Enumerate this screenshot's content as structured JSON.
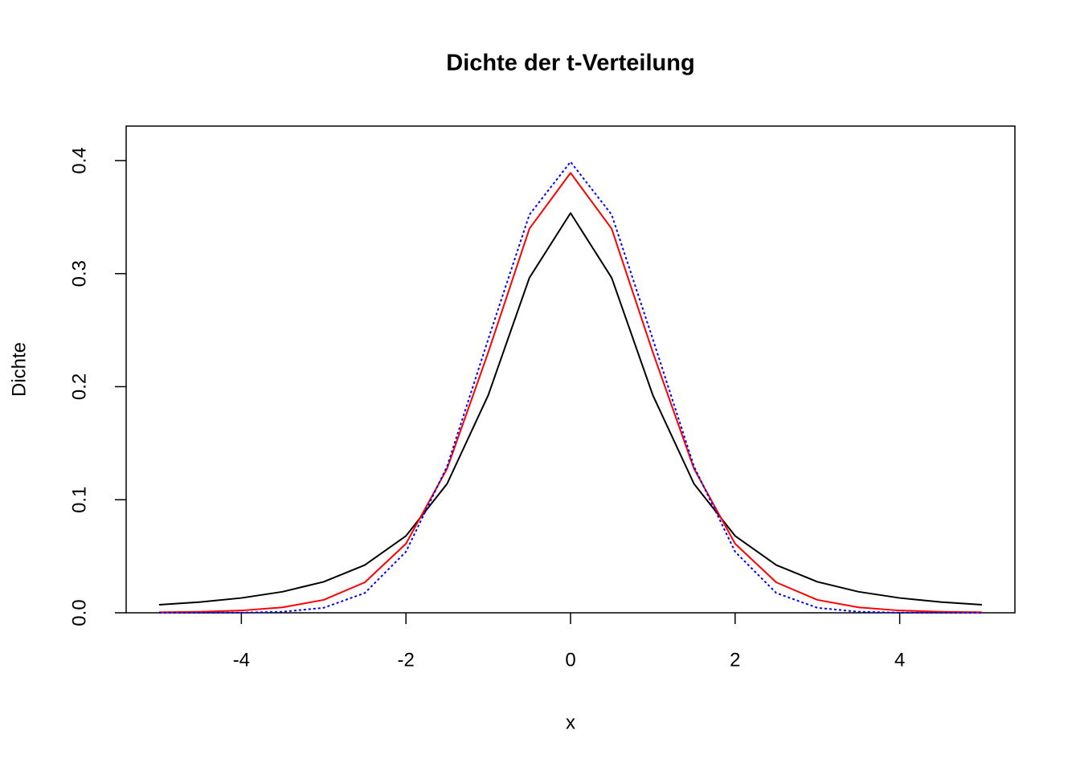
{
  "chart_data": {
    "type": "line",
    "title": "Dichte der t-Verteilung",
    "x_label": "x",
    "y_label": "Dichte",
    "x": [
      -5,
      -4.5,
      -4,
      -3.5,
      -3,
      -2.5,
      -2,
      -1.5,
      -1,
      -0.5,
      0,
      0.5,
      1,
      1.5,
      2,
      2.5,
      3,
      3.5,
      4,
      4.5,
      5
    ],
    "series": [
      {
        "color": "#000000",
        "dash": "none",
        "values": [
          0.0071,
          0.0095,
          0.0131,
          0.0186,
          0.0274,
          0.0422,
          0.068,
          0.1141,
          0.1925,
          0.2963,
          0.3536,
          0.2963,
          0.1925,
          0.1141,
          0.068,
          0.0422,
          0.0274,
          0.0186,
          0.0131,
          0.0095,
          0.0071
        ]
      },
      {
        "color": "#ff0000",
        "dash": "none",
        "values": [
          0.0004,
          0.0009,
          0.002,
          0.0048,
          0.0114,
          0.0269,
          0.0611,
          0.1275,
          0.2304,
          0.3397,
          0.3891,
          0.3397,
          0.2304,
          0.1275,
          0.0611,
          0.0269,
          0.0114,
          0.0048,
          0.002,
          0.0009,
          0.0004
        ]
      },
      {
        "color": "#0000ff",
        "dash": "3 3",
        "values": [
          0.0,
          0.0,
          0.0001,
          0.0009,
          0.0044,
          0.0175,
          0.054,
          0.1295,
          0.242,
          0.3521,
          0.3989,
          0.3521,
          0.242,
          0.1295,
          0.054,
          0.0175,
          0.0044,
          0.0009,
          0.0001,
          0.0,
          0.0
        ]
      }
    ],
    "xlim": [
      -5.4,
      5.4
    ],
    "ylim": [
      0,
      0.4305
    ],
    "xticks": [
      -4,
      -2,
      0,
      2,
      4
    ],
    "yticks": [
      {
        "value": 0,
        "label": "0.0"
      },
      0.1,
      0.2,
      0.3,
      0.4
    ],
    "grid": false
  }
}
